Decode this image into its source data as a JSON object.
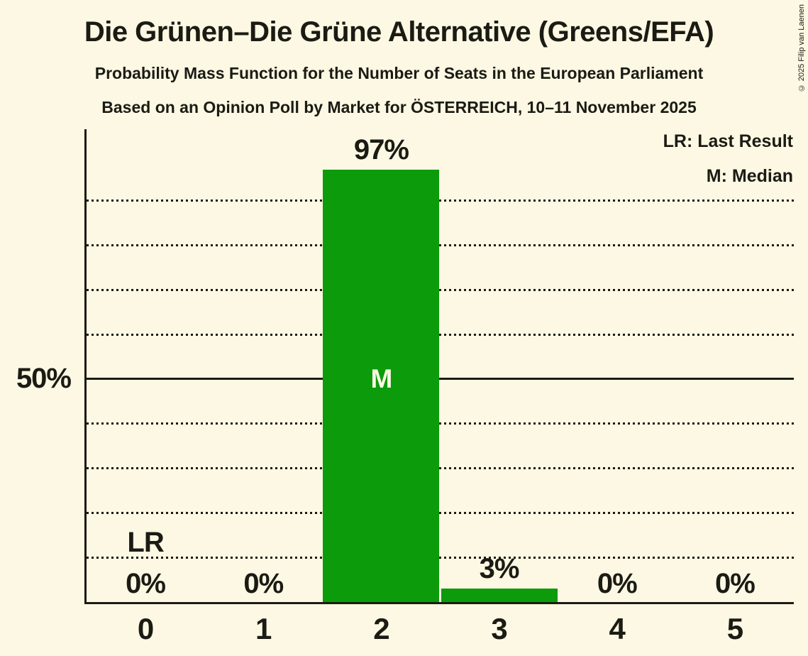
{
  "page": {
    "title": "Die Grünen–Die Grüne Alternative (Greens/EFA)",
    "subtitle1": "Probability Mass Function for the Number of Seats in the European Parliament",
    "subtitle2": "Based on an Opinion Poll by Market for ÖSTERREICH, 10–11 November 2025",
    "copyright": "© 2025 Filip van Laenen"
  },
  "legend": {
    "last_result": "LR: Last Result",
    "median": "M: Median"
  },
  "y_axis": {
    "label": "50%"
  },
  "colors": {
    "background": "#FCF8E3",
    "bar": "#0B9B0B",
    "text": "#1B1B14",
    "marker_inside_bar": "#FCF8E3"
  },
  "chart_data": {
    "type": "bar",
    "title": "Die Grünen–Die Grüne Alternative (Greens/EFA)",
    "subtitle": "Probability Mass Function for the Number of Seats in the European Parliament",
    "source_line": "Based on an Opinion Poll by Market for ÖSTERREICH, 10–11 November 2025",
    "categories": [
      "0",
      "1",
      "2",
      "3",
      "4",
      "5"
    ],
    "values": [
      0,
      0,
      97,
      3,
      0,
      0
    ],
    "value_labels": [
      "0%",
      "0%",
      "97%",
      "3%",
      "0%",
      "0%"
    ],
    "xlabel": "",
    "ylabel": "",
    "ylim": [
      0,
      106
    ],
    "y_tick_pct": 50,
    "y_tick_label": "50%",
    "gridlines_pct": [
      10,
      20,
      30,
      40,
      60,
      70,
      80,
      90
    ],
    "solid_line_pct": 50,
    "grid": "dotted horizontal, solid at 50%",
    "legend_position": "top-right",
    "legend_entries": [
      "LR: Last Result",
      "M: Median"
    ],
    "annotations": {
      "last_result": {
        "category_index": 0,
        "label": "LR"
      },
      "median": {
        "category_index": 2,
        "label": "M"
      }
    }
  }
}
